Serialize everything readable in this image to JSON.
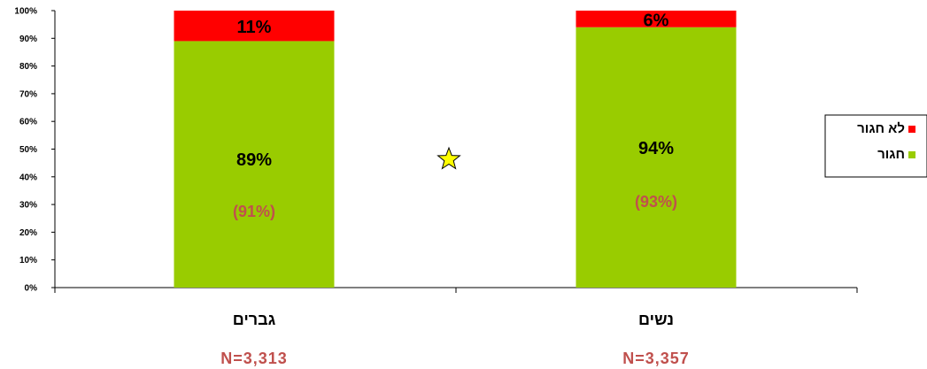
{
  "chart_data": {
    "type": "bar",
    "stacked": true,
    "categories": [
      "גברים",
      "נשים"
    ],
    "series": [
      {
        "name": "חגור",
        "values": [
          89,
          94
        ]
      },
      {
        "name": "לא חגור",
        "values": [
          11,
          6
        ]
      }
    ],
    "value_labels": {
      "חגור": [
        "89%",
        "94%"
      ],
      "לא חגור": [
        "11%",
        "6%"
      ]
    },
    "secondary_labels": [
      "(91%)",
      "(93%)"
    ],
    "n_labels": [
      "N=3,313",
      "N=3,357"
    ],
    "y_ticks": [
      "0%",
      "10%",
      "20%",
      "30%",
      "40%",
      "50%",
      "60%",
      "70%",
      "80%",
      "90%",
      "100%"
    ],
    "ylim": [
      0,
      100
    ],
    "legend_position": "right",
    "colors": {
      "חגור": "#99cc00",
      "לא חגור": "#ff0000",
      "secondary_label": "#c0504d",
      "n_label": "#c0504d",
      "star": "#ffff00"
    },
    "annotation_icon": "star-icon",
    "grid": false
  }
}
